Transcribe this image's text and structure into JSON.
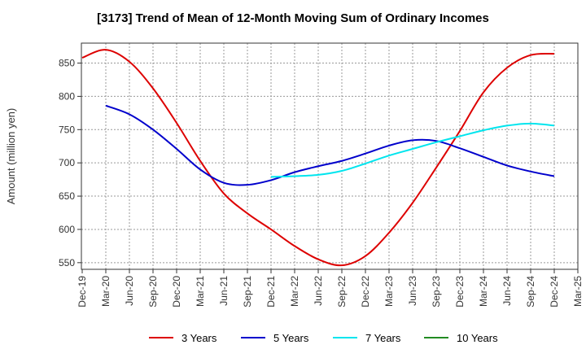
{
  "chart_data": {
    "type": "line",
    "title": "[3173]  Trend of Mean of 12-Month Moving Sum of Ordinary Incomes",
    "xlabel": "",
    "ylabel": "Amount (million yen)",
    "ylim": [
      540,
      880
    ],
    "yticks": [
      550,
      600,
      650,
      700,
      750,
      800,
      850
    ],
    "categories": [
      "Dec-19",
      "Mar-20",
      "Jun-20",
      "Sep-20",
      "Dec-20",
      "Mar-21",
      "Jun-21",
      "Sep-21",
      "Dec-21",
      "Mar-22",
      "Jun-22",
      "Sep-22",
      "Dec-22",
      "Mar-23",
      "Jun-23",
      "Sep-23",
      "Dec-23",
      "Mar-24",
      "Jun-24",
      "Sep-24",
      "Dec-24",
      "Mar-25"
    ],
    "grid": true,
    "legend_position": "bottom",
    "series": [
      {
        "name": "3 Years",
        "color": "#dd0000",
        "values": [
          858,
          870,
          852,
          812,
          760,
          703,
          654,
          624,
          600,
          575,
          555,
          546,
          560,
          595,
          640,
          693,
          748,
          806,
          843,
          862,
          864,
          null
        ]
      },
      {
        "name": "5 Years",
        "color": "#0000cc",
        "values": [
          null,
          786,
          773,
          750,
          721,
          690,
          670,
          667,
          674,
          686,
          695,
          703,
          714,
          726,
          734,
          733,
          722,
          709,
          696,
          687,
          680,
          null
        ]
      },
      {
        "name": "7 Years",
        "color": "#00e5ee",
        "values": [
          null,
          null,
          null,
          null,
          null,
          null,
          null,
          null,
          679,
          680,
          682,
          688,
          699,
          711,
          721,
          731,
          740,
          749,
          756,
          759,
          756,
          null
        ]
      },
      {
        "name": "10 Years",
        "color": "#228b22",
        "values": [
          null,
          null,
          null,
          null,
          null,
          null,
          null,
          null,
          null,
          null,
          null,
          null,
          null,
          null,
          null,
          null,
          null,
          null,
          null,
          null,
          null,
          null
        ]
      }
    ]
  }
}
